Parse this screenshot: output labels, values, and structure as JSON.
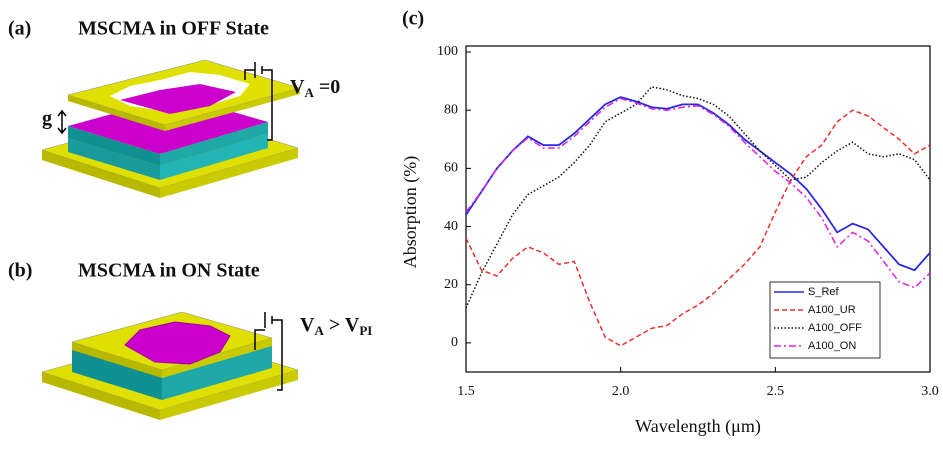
{
  "panels": {
    "a": {
      "label": "(a)",
      "title": "MSCMA in OFF State",
      "gap": "g",
      "voltage": {
        "base": "V",
        "sub": "A",
        "rest": " =0"
      }
    },
    "b": {
      "label": "(b)",
      "title": "MSCMA in ON State",
      "voltage": {
        "base": "V",
        "sub": "A",
        "mid": " > V",
        "sub2": "PI"
      }
    }
  },
  "chart_data": {
    "type": "line",
    "title": "(c)",
    "x_label": "Wavelength (μm)",
    "y_label": "Absorption (%)",
    "x": [
      1.5,
      1.55,
      1.6,
      1.65,
      1.7,
      1.75,
      1.8,
      1.85,
      1.9,
      1.95,
      2.0,
      2.05,
      2.1,
      2.15,
      2.2,
      2.25,
      2.3,
      2.35,
      2.4,
      2.45,
      2.5,
      2.55,
      2.6,
      2.65,
      2.7,
      2.75,
      2.8,
      2.85,
      2.9,
      2.95,
      3.0
    ],
    "series": [
      {
        "name": "S_Ref",
        "color": "#2828e0",
        "dash": "solid",
        "values": [
          44,
          52,
          60,
          66,
          71,
          68,
          68,
          72,
          77,
          82,
          84.5,
          83,
          81,
          80.5,
          82,
          82,
          79,
          75,
          70,
          66,
          62,
          58,
          53,
          46,
          38,
          41,
          39,
          33,
          27,
          25,
          31
        ]
      },
      {
        "name": "A100_UR",
        "color": "#e83030",
        "dash": "dashed",
        "values": [
          36,
          25,
          23,
          29,
          33,
          31,
          27,
          28,
          14,
          2,
          -1,
          2,
          5,
          6,
          10,
          13,
          17,
          22,
          27,
          33,
          45,
          56,
          64,
          68,
          76,
          80,
          78,
          74,
          70,
          65,
          68
        ]
      },
      {
        "name": "A100_OFF",
        "color": "#111111",
        "dash": "dotted",
        "values": [
          12,
          24,
          34,
          44,
          51,
          54,
          57,
          62,
          68,
          76,
          79,
          82,
          88,
          87,
          85,
          84,
          82,
          78,
          72,
          66,
          61,
          56,
          57,
          62,
          66,
          69,
          65,
          64,
          65,
          63,
          56
        ]
      },
      {
        "name": "A100_ON",
        "color": "#e020e0",
        "dash": "dashdot",
        "values": [
          45,
          52,
          60,
          66,
          70.5,
          67,
          67,
          71,
          76,
          81,
          84,
          82.5,
          80.5,
          80,
          81,
          81.5,
          78.5,
          74.5,
          69,
          64,
          59,
          55,
          50,
          43,
          33,
          38,
          35,
          28,
          21,
          19,
          24
        ]
      }
    ],
    "xlim": [
      1.5,
      3.0
    ],
    "ylim": [
      -10,
      100
    ],
    "xticks": [
      {
        "value": 1.5,
        "label": "1.5"
      },
      {
        "value": 2.0,
        "label": "2.0"
      },
      {
        "value": 2.5,
        "label": "2.5"
      },
      {
        "value": 3.0,
        "label": "3.0"
      }
    ],
    "yticks": [
      0,
      20,
      40,
      60,
      80,
      100
    ],
    "legend": "lower right"
  }
}
